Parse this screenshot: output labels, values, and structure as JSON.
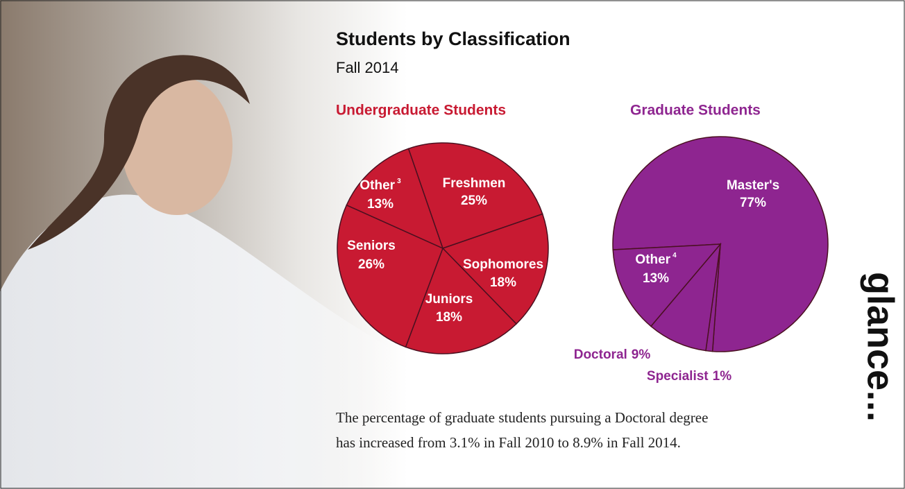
{
  "header": {
    "title": "Students by Classification",
    "subtitle": "Fall 2014"
  },
  "chart_data": [
    {
      "type": "pie",
      "title": "Undergraduate Students",
      "color": "#c81a32",
      "categories": [
        "Freshmen",
        "Sophomores",
        "Juniors",
        "Seniors",
        "Other"
      ],
      "category_notes": [
        null,
        null,
        null,
        null,
        "3"
      ],
      "values": [
        25,
        18,
        18,
        26,
        13
      ],
      "value_labels": [
        "25%",
        "18%",
        "18%",
        "26%",
        "13%"
      ]
    },
    {
      "type": "pie",
      "title": "Graduate Students",
      "color": "#8e2590",
      "categories": [
        "Master's",
        "Specialist",
        "Doctoral",
        "Other"
      ],
      "category_notes": [
        null,
        null,
        null,
        "4"
      ],
      "values": [
        77,
        1,
        9,
        13
      ],
      "value_labels": [
        "77%",
        "1%",
        "9%",
        "13%"
      ]
    }
  ],
  "note": [
    "The percentage of graduate students pursuing a Doctoral degree",
    "has increased from 3.1% in Fall 2010 to 8.9% in Fall 2014."
  ],
  "side_text": "glance..."
}
